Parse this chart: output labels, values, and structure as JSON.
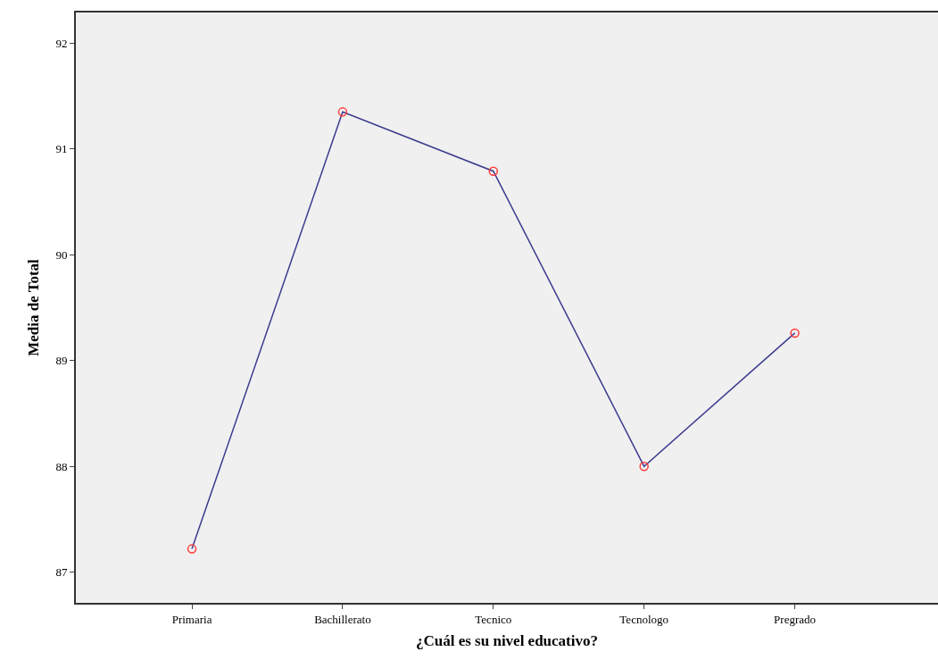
{
  "chart_data": {
    "type": "line",
    "xlabel": "¿Cuál es su nivel educativo?",
    "ylabel": "Media de Total",
    "categories": [
      "Primaria",
      "Bachillerato",
      "Tecnico",
      "Tecnologo",
      "Pregrado"
    ],
    "series": [
      {
        "color": "#3b3b8f",
        "values": [
          87.22,
          91.35,
          90.79,
          88.0,
          89.26
        ]
      }
    ],
    "marker": "circle",
    "ylim": [
      86.71,
      92.29
    ],
    "yticks": [
      87,
      88,
      89,
      90,
      91,
      92
    ]
  }
}
